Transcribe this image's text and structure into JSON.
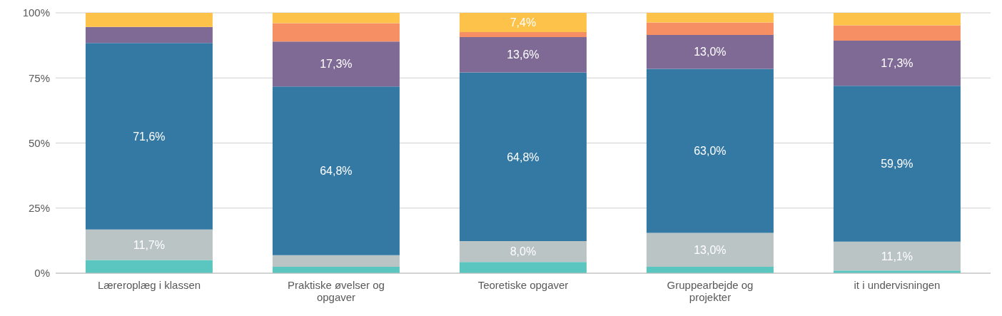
{
  "chart_data": {
    "type": "bar",
    "stacked": true,
    "categories": [
      "Læreroplæg i klassen",
      "Praktiske øvelser og opgaver",
      "Teoretiske opgaver",
      "Gruppearbejde og projekter",
      "it i undervisningen"
    ],
    "series": [
      {
        "color": "#5bc5c0",
        "values": [
          5.1,
          2.5,
          4.3,
          2.5,
          1.0
        ],
        "value_labels": [
          null,
          null,
          null,
          null,
          null
        ]
      },
      {
        "color": "#bac4c4",
        "values": [
          11.7,
          4.4,
          8.0,
          13.0,
          11.1
        ],
        "value_labels": [
          "11,7%",
          null,
          "8,0%",
          "13,0%",
          "11,1%"
        ]
      },
      {
        "color": "#3478a4",
        "values": [
          71.6,
          64.8,
          64.8,
          63.0,
          59.9
        ],
        "value_labels": [
          "71,6%",
          "64,8%",
          "64,8%",
          "63,0%",
          "59,9%"
        ]
      },
      {
        "color": "#7f6a96",
        "values": [
          6.2,
          17.3,
          13.6,
          13.0,
          17.3
        ],
        "value_labels": [
          null,
          "17,3%",
          "13,6%",
          "13,0%",
          "17,3%"
        ]
      },
      {
        "color": "#f78f65",
        "values": [
          0,
          7.0,
          1.9,
          4.8,
          5.9
        ],
        "value_labels": [
          null,
          null,
          null,
          null,
          null
        ]
      },
      {
        "color": "#fdc24a",
        "values": [
          5.4,
          4.0,
          7.4,
          3.7,
          4.8
        ],
        "value_labels": [
          null,
          null,
          "7,4%",
          null,
          null
        ]
      }
    ],
    "ylim": [
      0,
      100
    ],
    "yticks": [
      {
        "value": 0,
        "label": "0%"
      },
      {
        "value": 25,
        "label": "25%"
      },
      {
        "value": 50,
        "label": "50%"
      },
      {
        "value": 75,
        "label": "75%"
      },
      {
        "value": 100,
        "label": "100%"
      }
    ],
    "grid": "y",
    "legend": false
  }
}
